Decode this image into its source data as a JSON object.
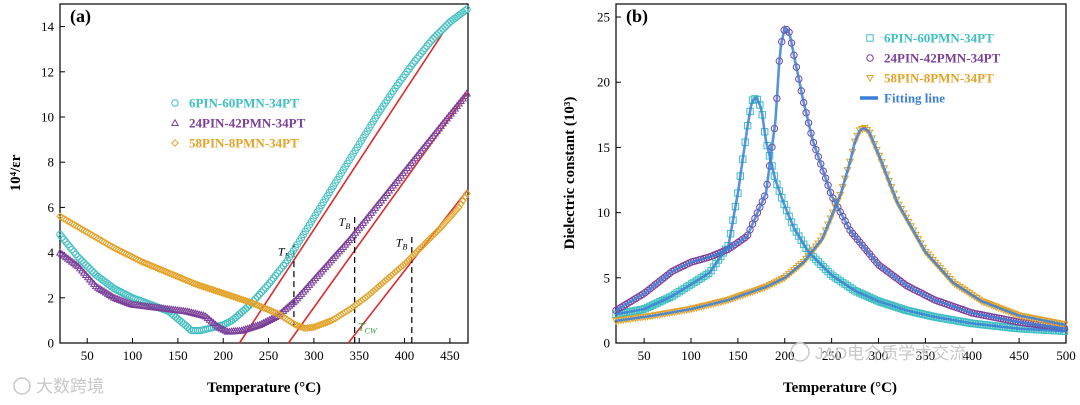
{
  "chart_data": [
    {
      "panel": "(a)",
      "type": "scatter",
      "xlabel": "Temperature (°C)",
      "ylabel": "10⁴/εr",
      "xlim": [
        20,
        470
      ],
      "ylim": [
        0,
        15
      ],
      "xticks": [
        50,
        100,
        150,
        200,
        250,
        300,
        350,
        400,
        450
      ],
      "yticks": [
        0,
        2,
        4,
        6,
        8,
        10,
        12,
        14
      ],
      "legend_position": "center-left",
      "series": [
        {
          "name": "6PIN-60PMN-34PT",
          "marker": "circle",
          "color": "#3fbfc0",
          "x": [
            20,
            40,
            60,
            80,
            100,
            120,
            140,
            155,
            165,
            175,
            190,
            200,
            210,
            230,
            250,
            270,
            290,
            310,
            330,
            350,
            370,
            390,
            410,
            430,
            450,
            470
          ],
          "y": [
            4.8,
            3.8,
            3.0,
            2.4,
            2.0,
            1.7,
            1.4,
            0.9,
            0.55,
            0.55,
            0.7,
            0.8,
            1.0,
            1.7,
            2.6,
            3.6,
            4.9,
            6.2,
            7.5,
            8.8,
            10.1,
            11.3,
            12.4,
            13.4,
            14.2,
            14.8
          ]
        },
        {
          "name": "24PIN-42PMN-34PT",
          "marker": "triangle",
          "color": "#7b3f99",
          "x": [
            20,
            40,
            60,
            80,
            100,
            120,
            140,
            160,
            180,
            195,
            205,
            220,
            240,
            260,
            280,
            300,
            320,
            340,
            360,
            380,
            400,
            420,
            440,
            460,
            470
          ],
          "y": [
            4.0,
            3.4,
            2.5,
            2.0,
            1.7,
            1.6,
            1.5,
            1.4,
            1.2,
            0.7,
            0.5,
            0.55,
            0.8,
            1.2,
            1.9,
            2.8,
            3.7,
            4.6,
            5.6,
            6.6,
            7.6,
            8.6,
            9.6,
            10.6,
            11.1
          ]
        },
        {
          "name": "58PIN-8PMN-34PT",
          "marker": "diamond",
          "color": "#e3a32a",
          "x": [
            20,
            50,
            80,
            110,
            140,
            170,
            200,
            230,
            260,
            280,
            290,
            300,
            320,
            340,
            360,
            380,
            400,
            420,
            440,
            460,
            470
          ],
          "y": [
            5.6,
            4.9,
            4.2,
            3.6,
            3.1,
            2.6,
            2.2,
            1.8,
            1.3,
            0.8,
            0.65,
            0.7,
            1.0,
            1.5,
            2.1,
            2.8,
            3.5,
            4.3,
            5.1,
            6.0,
            6.7
          ]
        }
      ],
      "fit_lines": [
        {
          "x": [
            218,
            442
          ],
          "y": [
            0,
            13.7
          ],
          "color": "#e02a2a"
        },
        {
          "x": [
            272,
            470
          ],
          "y": [
            0,
            11.1
          ],
          "color": "#e02a2a"
        },
        {
          "x": [
            338,
            470
          ],
          "y": [
            0,
            6.8
          ],
          "color": "#e02a2a"
        }
      ],
      "markers": [
        {
          "label": "T",
          "sub": "B",
          "x": 278,
          "y_bottom": 0.7,
          "y_top": 4.4
        },
        {
          "label": "T",
          "sub": "B",
          "x": 345,
          "y_bottom": 0,
          "y_top": 5.7
        },
        {
          "label": "T",
          "sub": "B",
          "x": 408,
          "y_bottom": 0,
          "y_top": 4.8
        }
      ],
      "annotation": {
        "label": "T",
        "sub": "CW",
        "x": 342,
        "y": 0.55
      }
    },
    {
      "panel": "(b)",
      "type": "scatter",
      "xlabel": "Temperature (°C)",
      "ylabel": "Dielectric constant (10³)",
      "xlim": [
        20,
        500
      ],
      "ylim": [
        0,
        26
      ],
      "xticks": [
        50,
        100,
        150,
        200,
        250,
        300,
        350,
        400,
        450,
        500
      ],
      "yticks": [
        0,
        5,
        10,
        15,
        20,
        25
      ],
      "legend_position": "top-right",
      "series": [
        {
          "name": "6PIN-60PMN-34PT",
          "marker": "square",
          "color": "#3fbfc0",
          "x": [
            20,
            50,
            80,
            100,
            120,
            140,
            150,
            160,
            165,
            170,
            175,
            180,
            190,
            200,
            210,
            225,
            250,
            275,
            300,
            330,
            360,
            400,
            450,
            500
          ],
          "y": [
            2.2,
            2.6,
            3.6,
            4.5,
            5.4,
            7.5,
            11.5,
            16.5,
            18.6,
            18.8,
            18.0,
            15.5,
            12.5,
            10.5,
            8.8,
            7.0,
            5.2,
            4.0,
            3.2,
            2.5,
            2.0,
            1.5,
            1.1,
            0.9
          ]
        },
        {
          "name": "24PIN-42PMN-34PT",
          "marker": "circle",
          "color": "#7b3f99",
          "x": [
            20,
            50,
            80,
            100,
            120,
            140,
            160,
            180,
            190,
            195,
            200,
            205,
            210,
            220,
            230,
            250,
            270,
            300,
            330,
            360,
            400,
            450,
            500
          ],
          "y": [
            2.5,
            3.8,
            5.5,
            6.2,
            6.6,
            7.2,
            8.2,
            11.5,
            17.0,
            22.5,
            24.2,
            23.8,
            22.0,
            18.5,
            15.5,
            11.3,
            8.6,
            6.0,
            4.4,
            3.3,
            2.3,
            1.6,
            1.1
          ]
        },
        {
          "name": "58PIN-8PMN-34PT",
          "marker": "triangle-down",
          "color": "#e3a32a",
          "x": [
            20,
            60,
            100,
            140,
            180,
            200,
            220,
            240,
            260,
            270,
            275,
            280,
            285,
            290,
            300,
            320,
            350,
            380,
            410,
            450,
            500
          ],
          "y": [
            1.7,
            2.1,
            2.6,
            3.3,
            4.3,
            5.0,
            6.2,
            8.0,
            11.5,
            14.0,
            15.5,
            16.3,
            16.5,
            16.2,
            14.5,
            10.8,
            7.0,
            4.6,
            3.2,
            2.1,
            1.4
          ]
        }
      ],
      "fitting_line": {
        "name": "Fitting line",
        "color": "#3a7fd5"
      }
    }
  ],
  "watermark": {
    "left": "大数跨境",
    "right": "JAD电介质学术交流"
  }
}
